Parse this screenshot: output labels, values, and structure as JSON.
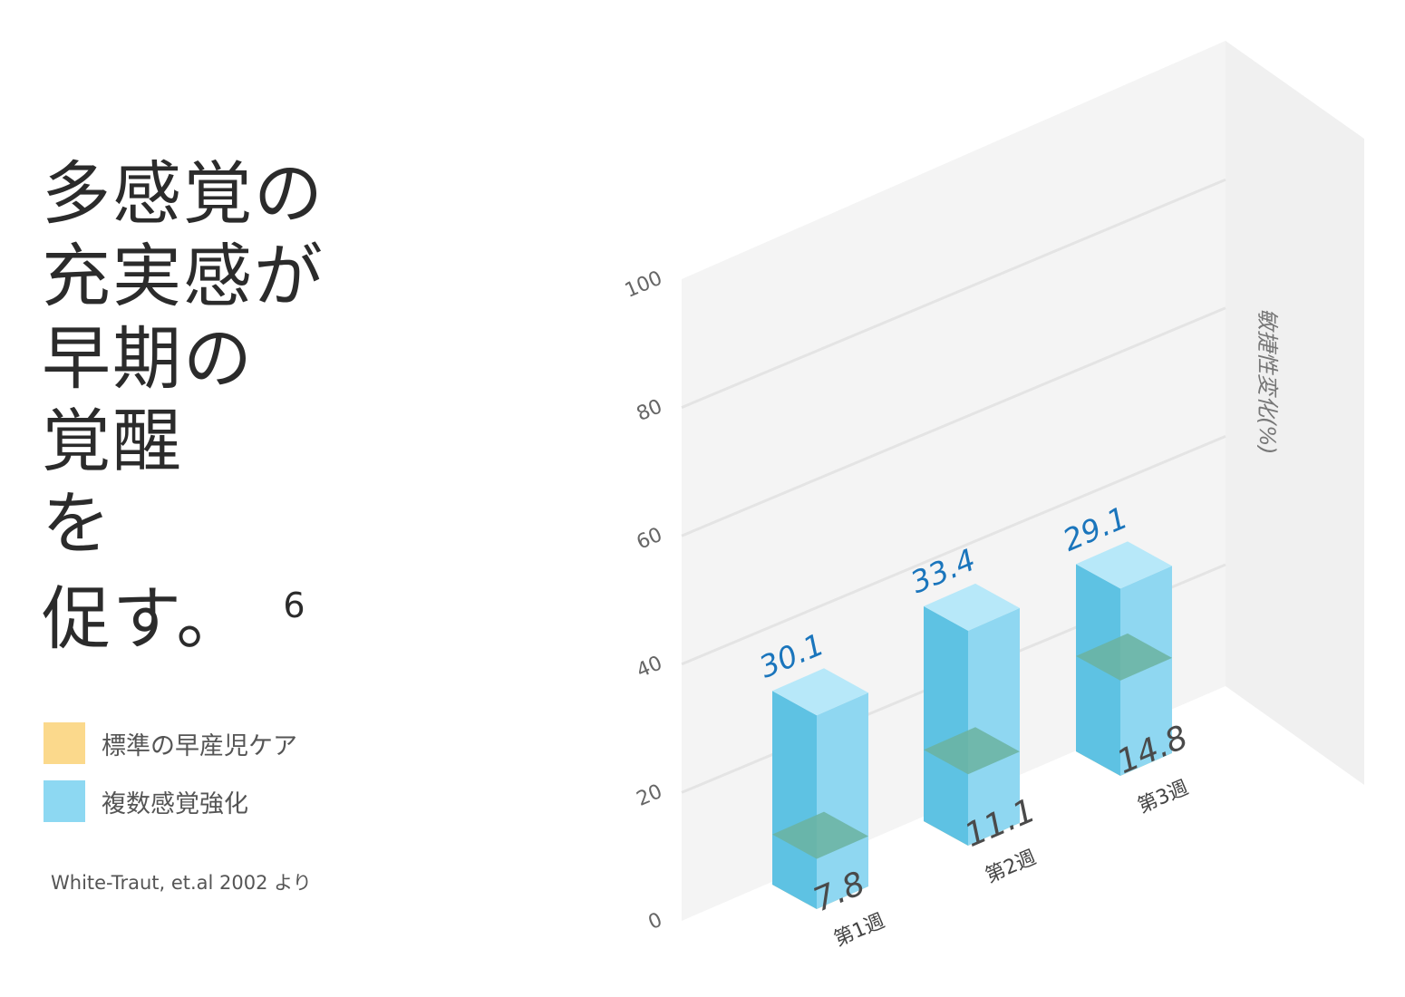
{
  "title": {
    "lines": [
      "多感覚の",
      "充実感が",
      "早期の",
      "覚醒",
      "を",
      "促す。"
    ],
    "footnote": "6"
  },
  "legend": [
    {
      "label": "標準の早産児ケア",
      "color": "#fbd98c"
    },
    {
      "label": "複数感覚強化",
      "color": "#8dd8f2"
    }
  ],
  "source": "White-Traut, et.al 2002 より",
  "chart_data": {
    "type": "bar",
    "stacked": true,
    "categories": [
      "第1週",
      "第2週",
      "第3週"
    ],
    "series": [
      {
        "name": "標準の早産児ケア",
        "values": [
          7.8,
          11.1,
          14.8
        ]
      },
      {
        "name": "複数感覚強化",
        "values": [
          30.1,
          33.4,
          29.1
        ]
      }
    ],
    "ylabel": "敏捷性変化(%)",
    "ylim": [
      0,
      100
    ],
    "yticks": [
      "0",
      "20",
      "40",
      "60",
      "80",
      "100"
    ],
    "grid": true,
    "legend_position": "left",
    "colors": {
      "standard_front": "#ebc77c",
      "standard_side": "#f5d791",
      "standard_top": "#fadd98",
      "enhanced_front": "#5ec2e3",
      "enhanced_side": "#8fd7f1",
      "enhanced_top": "#b7e8f9",
      "overlap_top": "#6bb3a0",
      "label_top": "#1a75bc"
    }
  }
}
